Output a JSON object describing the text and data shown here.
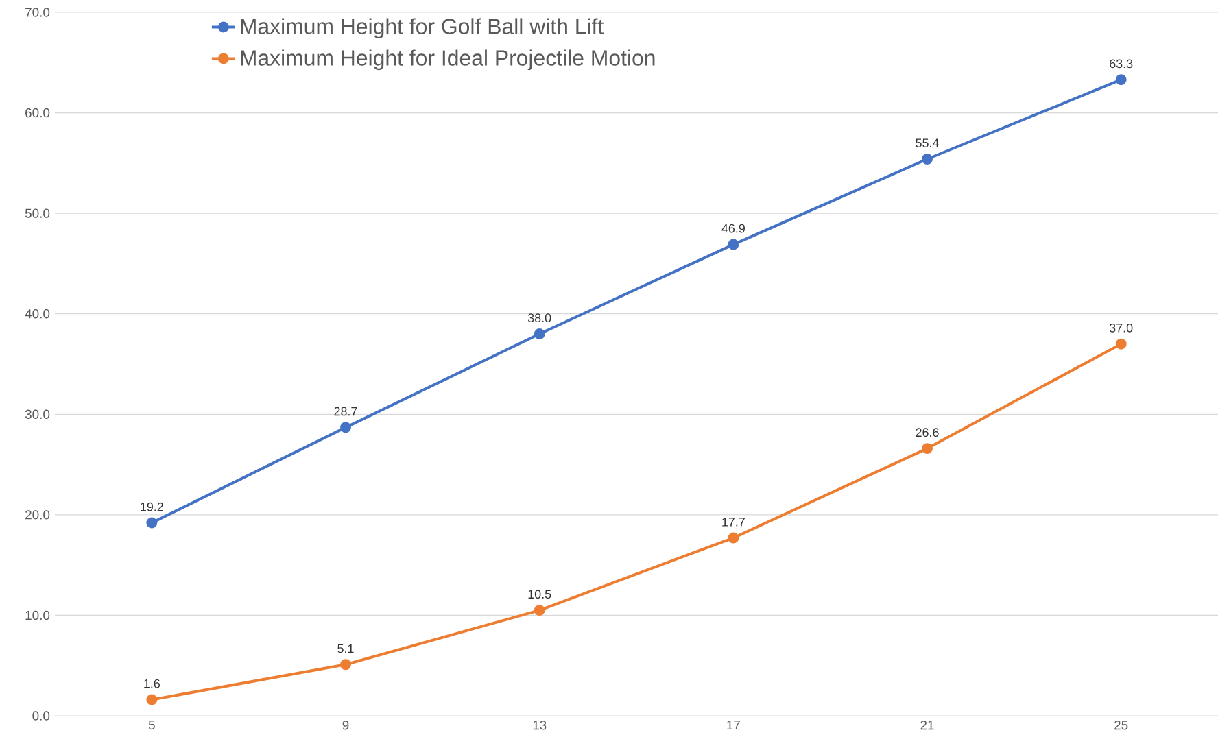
{
  "chart_data": {
    "type": "line",
    "categories": [
      "5",
      "9",
      "13",
      "17",
      "21",
      "25"
    ],
    "series": [
      {
        "name": "Maximum Height for Golf Ball with Lift",
        "color": "#4472c4",
        "values": [
          19.2,
          28.7,
          38.0,
          46.9,
          55.4,
          63.3
        ],
        "value_labels": [
          "19.2",
          "28.7",
          "38.0",
          "46.9",
          "55.4",
          "63.3"
        ]
      },
      {
        "name": "Maximum Height for Ideal Projectile Motion",
        "color": "#ed7d31",
        "values": [
          1.6,
          5.1,
          10.5,
          17.7,
          26.6,
          37.0
        ],
        "value_labels": [
          "1.6",
          "5.1",
          "10.5",
          "17.7",
          "26.6",
          "37.0"
        ]
      }
    ],
    "ylim": [
      0,
      70
    ],
    "yticks": [
      {
        "value": 0,
        "label": "0.0"
      },
      {
        "value": 10,
        "label": "10.0"
      },
      {
        "value": 20,
        "label": "20.0"
      },
      {
        "value": 30,
        "label": "30.0"
      },
      {
        "value": 40,
        "label": "40.0"
      },
      {
        "value": 50,
        "label": "50.0"
      },
      {
        "value": 60,
        "label": "60.0"
      },
      {
        "value": 70,
        "label": "70.0"
      }
    ],
    "grid": "y",
    "legend": "top left",
    "marker": "circle",
    "line_style": "solid"
  }
}
